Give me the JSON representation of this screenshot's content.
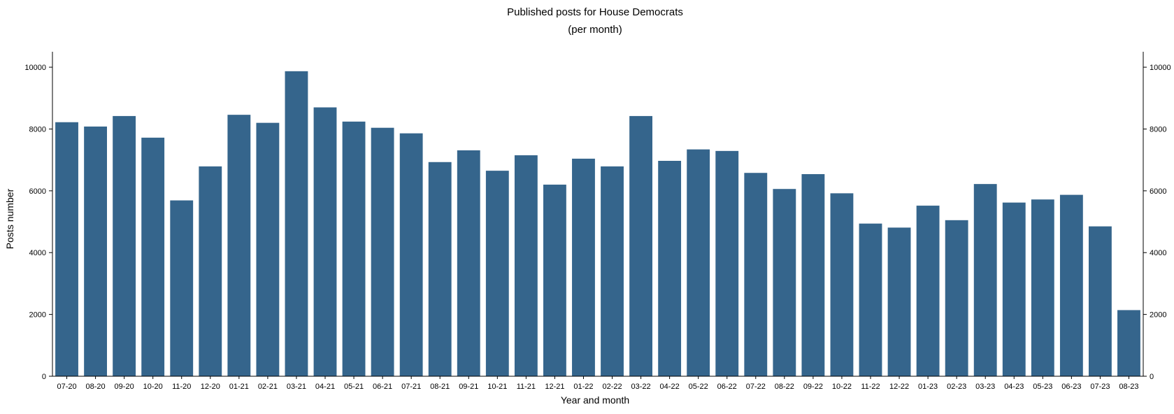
{
  "chart_data": {
    "type": "bar",
    "title": "Published posts for House Democrats",
    "subtitle": "(per month)",
    "xlabel": "Year and month",
    "ylabel": "Posts number",
    "ylim": [
      0,
      10500
    ],
    "yticks": [
      0,
      2000,
      4000,
      6000,
      8000,
      10000
    ],
    "secondary_y_axis": true,
    "grid": false,
    "bar_color": "#35658c",
    "categories": [
      "07-20",
      "08-20",
      "09-20",
      "10-20",
      "11-20",
      "12-20",
      "01-21",
      "02-21",
      "03-21",
      "04-21",
      "05-21",
      "06-21",
      "07-21",
      "08-21",
      "09-21",
      "10-21",
      "11-21",
      "12-21",
      "01-22",
      "02-22",
      "03-22",
      "04-22",
      "05-22",
      "06-22",
      "07-22",
      "08-22",
      "09-22",
      "10-22",
      "11-22",
      "12-22",
      "01-23",
      "02-23",
      "03-23",
      "04-23",
      "05-23",
      "06-23",
      "07-23",
      "08-23"
    ],
    "values": [
      8220,
      8080,
      8420,
      7720,
      5690,
      6790,
      8460,
      8200,
      9870,
      8700,
      8240,
      8040,
      7860,
      6930,
      7310,
      6650,
      7150,
      6200,
      7040,
      6790,
      8420,
      6970,
      7340,
      7290,
      6580,
      6060,
      6540,
      5920,
      4940,
      4810,
      5520,
      5050,
      6220,
      5620,
      5720,
      5870,
      4850,
      2140
    ]
  }
}
